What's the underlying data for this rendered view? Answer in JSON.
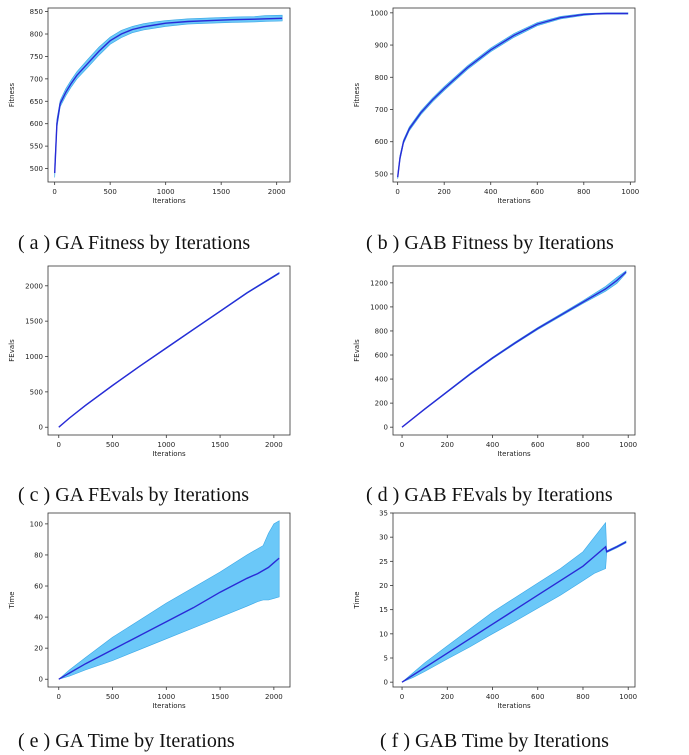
{
  "figure": {
    "colors": {
      "mean_line": "#2a2ad6",
      "band": "#5bc2f7",
      "band_edge": "#3aa7e6",
      "axes": "#333333"
    }
  },
  "chart_data": [
    {
      "id": "a",
      "type": "line",
      "caption": "( a ) GA Fitness by Iterations",
      "xlabel": "Iterations",
      "ylabel": "Fitness",
      "xlim": [
        -60,
        2120
      ],
      "ylim": [
        470,
        858
      ],
      "xticks": [
        0,
        500,
        1000,
        1500,
        2000
      ],
      "yticks": [
        500,
        550,
        600,
        650,
        700,
        750,
        800,
        850
      ],
      "grid": false,
      "series": [
        {
          "x": [
            0,
            20,
            50,
            100,
            150,
            200,
            300,
            400,
            500,
            600,
            700,
            800,
            900,
            1000,
            1200,
            1400,
            1600,
            1800,
            1900,
            2050
          ],
          "values": [
            490,
            600,
            645,
            670,
            690,
            708,
            735,
            762,
            785,
            800,
            810,
            816,
            820,
            824,
            828,
            830,
            832,
            833,
            834,
            835
          ],
          "upper": [
            510,
            610,
            652,
            678,
            698,
            716,
            744,
            771,
            793,
            808,
            817,
            823,
            827,
            830,
            834,
            836,
            838,
            839,
            841,
            842
          ],
          "lower": [
            480,
            590,
            638,
            662,
            682,
            700,
            726,
            753,
            777,
            792,
            803,
            809,
            813,
            817,
            822,
            824,
            826,
            827,
            828,
            829
          ]
        }
      ]
    },
    {
      "id": "b",
      "type": "line",
      "caption": "( b ) GAB Fitness by Iterations",
      "xlabel": "Iterations",
      "ylabel": "Fitness",
      "xlim": [
        -20,
        1020
      ],
      "ylim": [
        475,
        1015
      ],
      "xticks": [
        0,
        200,
        400,
        600,
        800,
        1000
      ],
      "yticks": [
        500,
        600,
        700,
        800,
        900,
        1000
      ],
      "grid": false,
      "series": [
        {
          "x": [
            0,
            10,
            25,
            50,
            100,
            150,
            200,
            300,
            400,
            500,
            600,
            700,
            800,
            850,
            900,
            990
          ],
          "values": [
            490,
            550,
            600,
            640,
            690,
            730,
            765,
            830,
            885,
            930,
            965,
            985,
            995,
            997,
            998,
            998
          ],
          "upper": [
            500,
            558,
            606,
            646,
            696,
            736,
            771,
            836,
            891,
            936,
            970,
            989,
            998,
            999,
            1000,
            1000
          ],
          "lower": [
            485,
            542,
            594,
            634,
            684,
            724,
            759,
            824,
            879,
            924,
            960,
            981,
            992,
            995,
            996,
            996
          ]
        }
      ]
    },
    {
      "id": "c",
      "type": "line",
      "caption": "( c ) GA FEvals by Iterations",
      "xlabel": "Iterations",
      "ylabel": "FEvals",
      "xlim": [
        -100,
        2150
      ],
      "ylim": [
        -110,
        2280
      ],
      "xticks": [
        0,
        500,
        1000,
        1500,
        2000
      ],
      "yticks": [
        0,
        500,
        1000,
        1500,
        2000
      ],
      "grid": false,
      "series": [
        {
          "x": [
            0,
            100,
            250,
            500,
            750,
            1000,
            1250,
            1500,
            1750,
            2050
          ],
          "values": [
            0,
            130,
            310,
            590,
            860,
            1120,
            1380,
            1640,
            1900,
            2180
          ],
          "upper": [
            0,
            135,
            315,
            596,
            866,
            1127,
            1387,
            1648,
            1908,
            2190
          ],
          "lower": [
            0,
            125,
            305,
            584,
            854,
            1113,
            1373,
            1632,
            1892,
            2170
          ]
        }
      ]
    },
    {
      "id": "d",
      "type": "line",
      "caption": "( d ) GAB FEvals by Iterations",
      "xlabel": "Iterations",
      "ylabel": "FEvals",
      "xlim": [
        -40,
        1030
      ],
      "ylim": [
        -65,
        1340
      ],
      "xticks": [
        0,
        200,
        400,
        600,
        800,
        1000
      ],
      "yticks": [
        0,
        200,
        400,
        600,
        800,
        1000,
        1200
      ],
      "grid": false,
      "series": [
        {
          "x": [
            0,
            100,
            200,
            300,
            400,
            500,
            600,
            700,
            800,
            900,
            950,
            990
          ],
          "values": [
            0,
            150,
            295,
            440,
            575,
            700,
            820,
            930,
            1040,
            1150,
            1220,
            1290
          ],
          "upper": [
            0,
            154,
            300,
            446,
            582,
            708,
            829,
            940,
            1052,
            1170,
            1245,
            1300
          ],
          "lower": [
            0,
            146,
            290,
            434,
            568,
            692,
            811,
            920,
            1028,
            1130,
            1195,
            1280
          ]
        }
      ]
    },
    {
      "id": "e",
      "type": "area",
      "caption": "( e ) GA Time by Iterations",
      "xlabel": "Iterations",
      "ylabel": "Time",
      "xlim": [
        -100,
        2150
      ],
      "ylim": [
        -5,
        107
      ],
      "xticks": [
        0,
        500,
        1000,
        1500,
        2000
      ],
      "yticks": [
        0,
        20,
        40,
        60,
        80,
        100
      ],
      "grid": false,
      "series": [
        {
          "x": [
            0,
            100,
            250,
            500,
            750,
            1000,
            1250,
            1500,
            1750,
            1850,
            1900,
            1950,
            2000,
            2050
          ],
          "values": [
            0,
            4,
            10,
            19,
            28,
            37,
            46,
            56,
            65,
            68,
            70,
            72,
            75,
            78
          ],
          "upper": [
            0,
            6,
            14,
            27,
            38,
            49,
            59,
            69,
            80,
            84,
            86,
            94,
            100,
            102
          ],
          "lower": [
            0,
            2,
            6,
            12,
            19,
            26,
            33,
            40,
            47,
            50,
            51,
            51,
            52,
            53
          ]
        }
      ]
    },
    {
      "id": "f",
      "type": "area",
      "caption": "( f ) GAB Time by Iterations",
      "xlabel": "Iterations",
      "ylabel": "Time",
      "xlim": [
        -40,
        1030
      ],
      "ylim": [
        -1,
        35
      ],
      "xticks": [
        0,
        200,
        400,
        600,
        800,
        1000
      ],
      "yticks": [
        0,
        5,
        10,
        15,
        20,
        25,
        30,
        35
      ],
      "grid": false,
      "series": [
        {
          "x": [
            0,
            50,
            100,
            200,
            300,
            400,
            500,
            600,
            700,
            800,
            850,
            900,
            905,
            950,
            990
          ],
          "values": [
            0,
            1.5,
            3,
            6,
            9,
            12,
            15,
            18,
            21,
            24,
            26,
            28,
            27,
            28,
            29
          ],
          "upper": [
            0,
            2,
            4,
            7.5,
            11,
            14.5,
            17.5,
            20.5,
            23.5,
            27,
            30,
            33,
            27.2,
            28.2,
            29.2
          ],
          "lower": [
            0,
            1,
            2.2,
            4.8,
            7.3,
            10,
            12.6,
            15.3,
            18,
            21,
            22.5,
            23.5,
            26.8,
            27.8,
            28.8
          ]
        }
      ]
    }
  ]
}
